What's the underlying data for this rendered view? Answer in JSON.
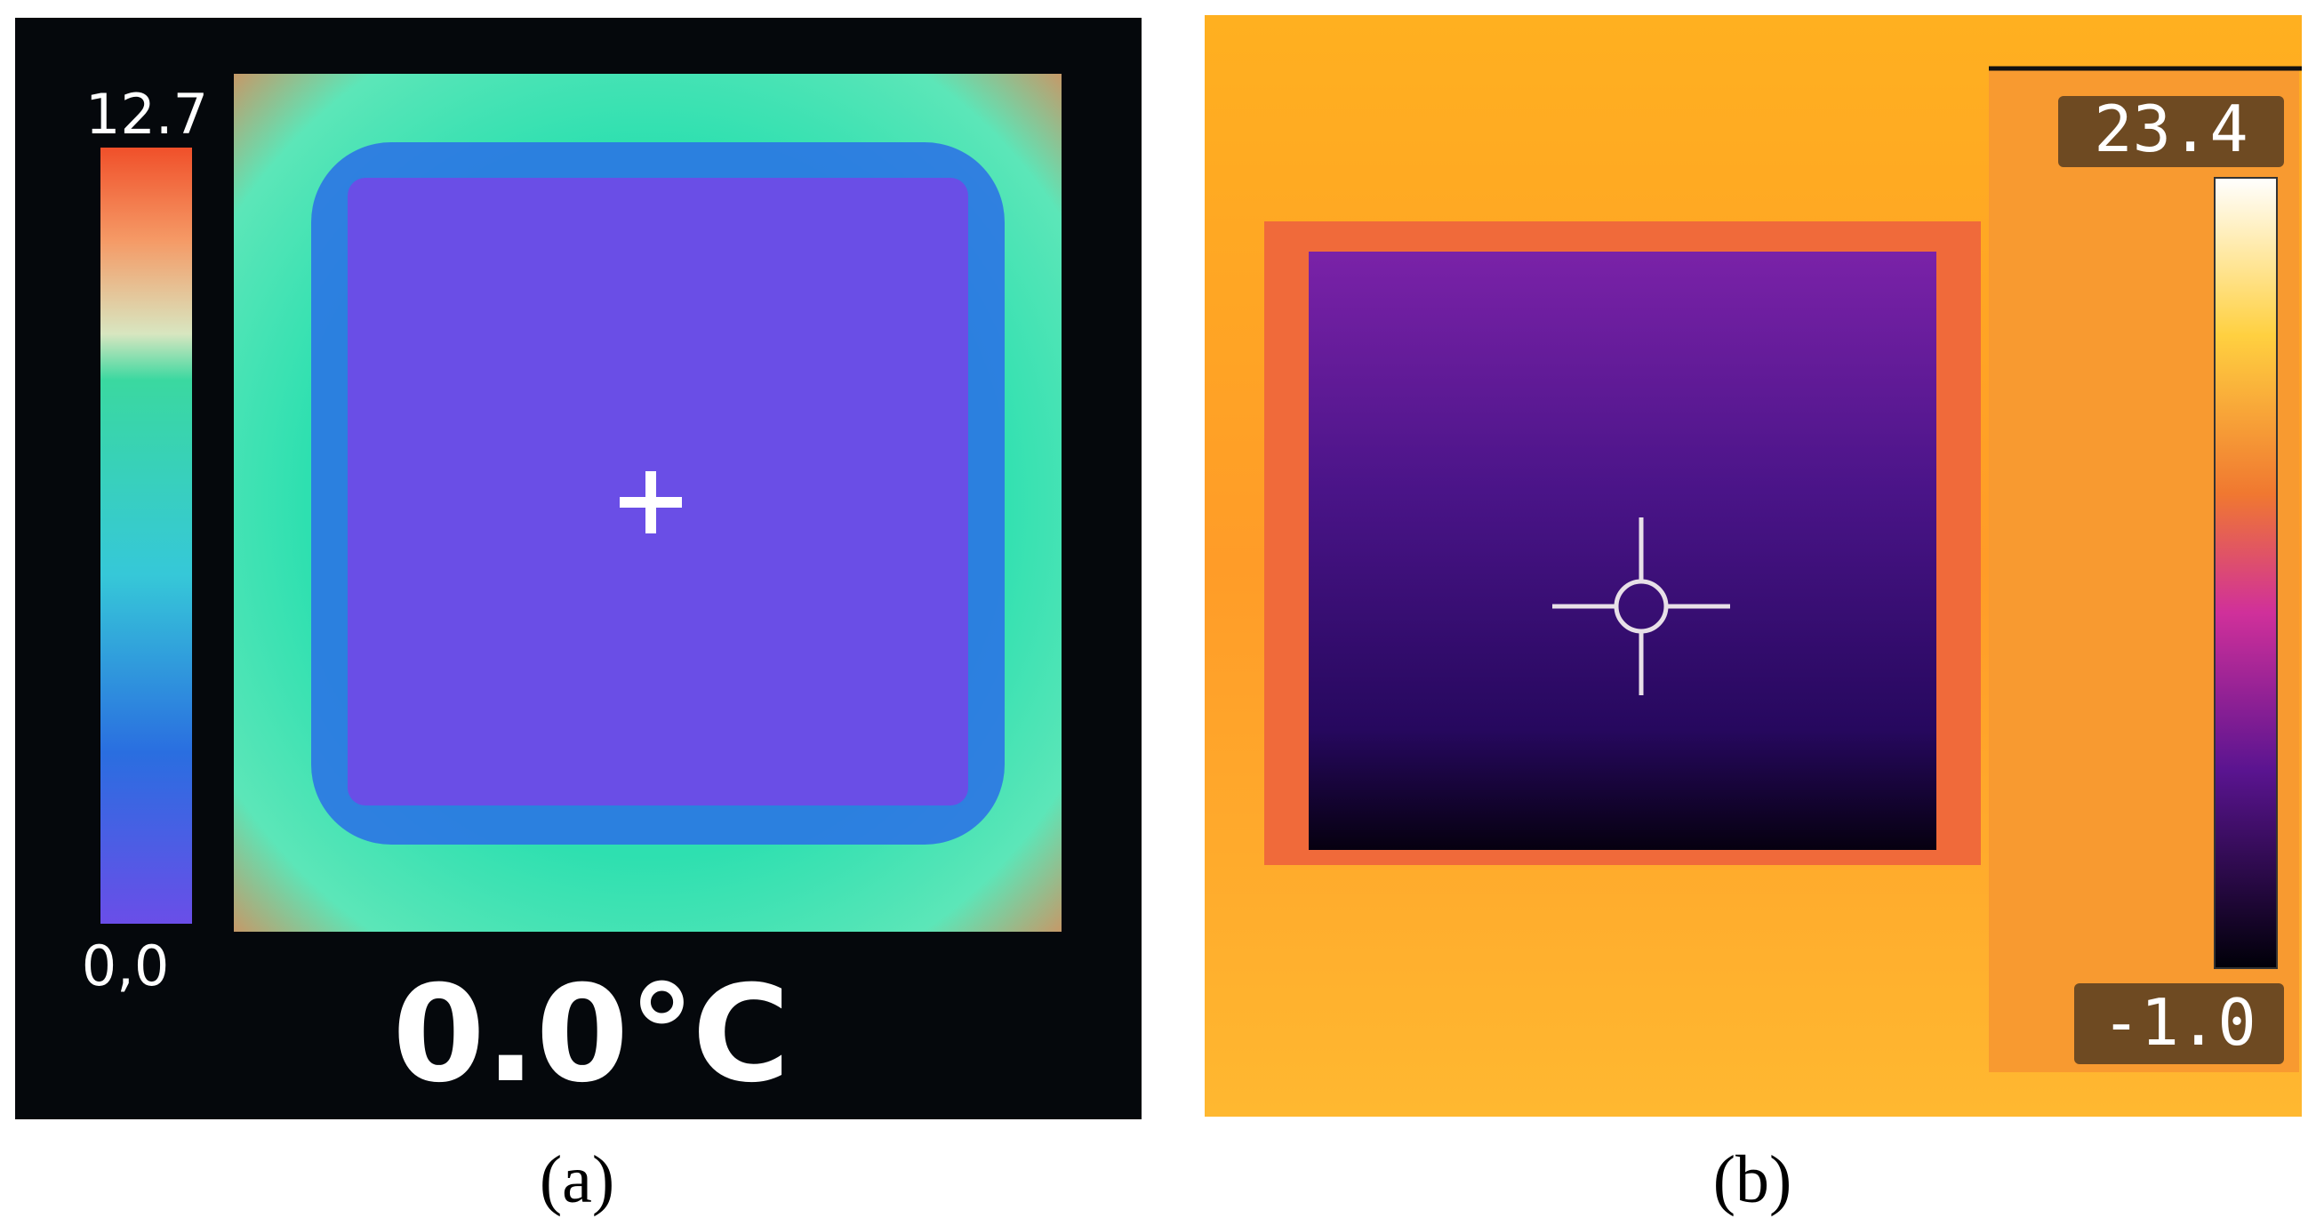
{
  "panel_a": {
    "scale_max": "12.7",
    "scale_min": "0,0",
    "reading": "0.0℃",
    "caption": "(a)"
  },
  "panel_b": {
    "scale_max": "23.4",
    "scale_min": "-1.0",
    "caption": "(b)"
  }
}
